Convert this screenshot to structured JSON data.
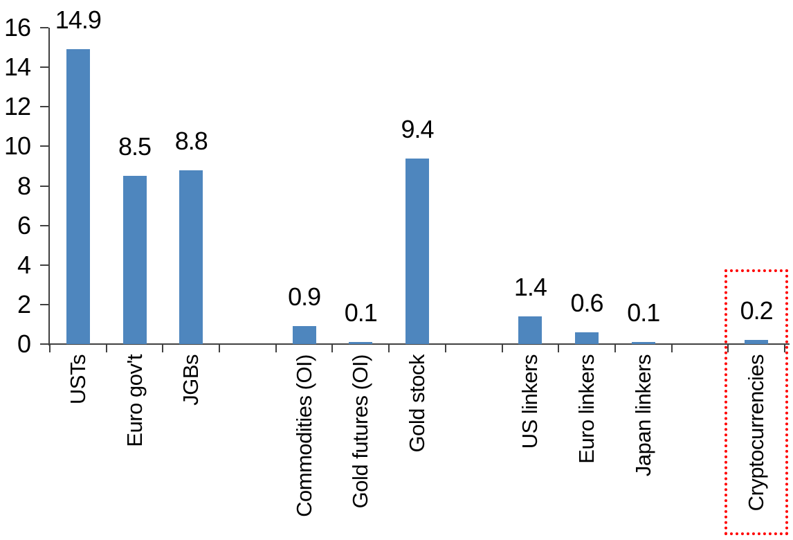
{
  "chart_data": {
    "type": "bar",
    "title": "",
    "xlabel": "",
    "ylabel": "",
    "categories": [
      "USTs",
      "Euro gov't",
      "JGBs",
      "",
      "Commodities (OI)",
      "Gold futures (OI)",
      "Gold stock",
      "",
      "US linkers",
      "Euro linkers",
      "Japan linkers",
      "",
      "Cryptocurrencies"
    ],
    "values": [
      14.9,
      8.5,
      8.8,
      null,
      0.9,
      0.1,
      9.4,
      null,
      1.4,
      0.6,
      0.1,
      null,
      0.2
    ],
    "value_labels": [
      "14.9",
      "8.5",
      "8.8",
      null,
      "0.9",
      "0.1",
      "9.4",
      null,
      "1.4",
      "0.6",
      "0.1",
      null,
      "0.2"
    ],
    "ylim": [
      0,
      16
    ],
    "ytick_step": 2,
    "ytick_labels": [
      "0",
      "2",
      "4",
      "6",
      "8",
      "10",
      "12",
      "14",
      "16"
    ],
    "grid": false,
    "legend": false,
    "colors": {
      "bar": "#4E86BE",
      "axis": "#404040",
      "text": "#000000",
      "highlight": "#FF0000",
      "background": "#FFFFFF"
    },
    "highlight_box": {
      "category_index": 12,
      "category_label": "Cryptocurrencies",
      "style": "dotted",
      "color": "#FF0000"
    }
  }
}
